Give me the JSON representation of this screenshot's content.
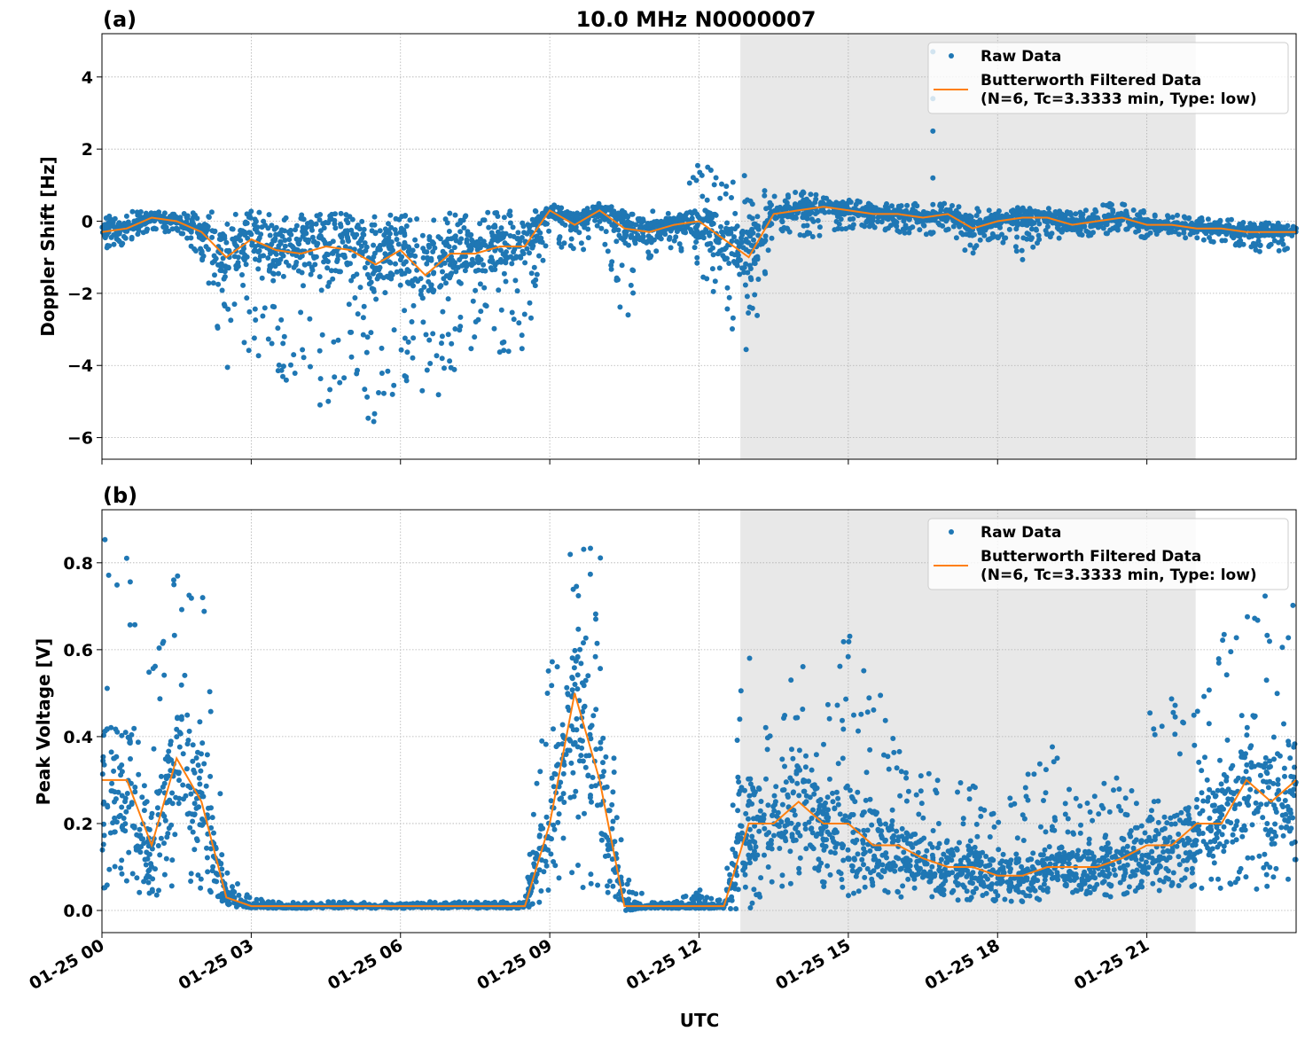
{
  "figure": {
    "title": "10.0 MHz N0000007",
    "xlabel": "UTC",
    "x_tick_labels": [
      "01-25 00",
      "01-25 03",
      "01-25 06",
      "01-25 09",
      "01-25 12",
      "01-25 15",
      "01-25 18",
      "01-25 21"
    ],
    "colors": {
      "raw": "#1f77b4",
      "filtered": "#ff7f0e",
      "shade": "#e8e8e8"
    },
    "legend": {
      "raw": "Raw Data",
      "filtered_line1": "Butterworth Filtered Data",
      "filtered_line2": "(N=6, Tc=3.3333 min, Type: low)",
      "placement": "upper right"
    }
  },
  "chart_data": [
    {
      "panel_label": "(a)",
      "type": "scatter+line",
      "ylabel": "Doppler Shift [Hz]",
      "x_unit": "hours UTC on 01-25",
      "xlim": [
        0,
        24
      ],
      "ylim": [
        -6.6,
        5.2
      ],
      "y_ticks": [
        -6,
        -4,
        -2,
        0,
        2,
        4
      ],
      "y_tick_labels": [
        "−6",
        "−4",
        "−2",
        "0",
        "2",
        "4"
      ],
      "grid": true,
      "shaded_span_hours": [
        12.83,
        21.98
      ],
      "x": [
        0,
        0.5,
        1,
        1.5,
        2,
        2.5,
        3,
        3.5,
        4,
        4.5,
        5,
        5.5,
        6,
        6.5,
        7,
        7.5,
        8,
        8.5,
        9,
        9.5,
        10,
        10.5,
        11,
        11.5,
        12,
        12.5,
        13,
        13.5,
        14,
        14.5,
        15,
        15.5,
        16,
        16.5,
        17,
        17.5,
        18,
        18.5,
        19,
        19.5,
        20,
        20.5,
        21,
        21.5,
        22,
        22.5,
        23,
        23.5,
        24
      ],
      "filtered": [
        -0.3,
        -0.2,
        0.1,
        0.0,
        -0.3,
        -1.0,
        -0.5,
        -0.8,
        -0.9,
        -0.7,
        -0.8,
        -1.2,
        -0.8,
        -1.5,
        -0.9,
        -0.9,
        -0.7,
        -0.7,
        0.3,
        -0.1,
        0.3,
        -0.2,
        -0.3,
        -0.1,
        0.0,
        -0.5,
        -1.0,
        0.2,
        0.3,
        0.4,
        0.3,
        0.2,
        0.2,
        0.1,
        0.2,
        -0.2,
        0.0,
        0.1,
        0.1,
        -0.1,
        0.0,
        0.1,
        -0.1,
        -0.1,
        -0.2,
        -0.2,
        -0.3,
        -0.3,
        -0.3
      ],
      "raw_min": [
        -1.1,
        -0.6,
        -0.3,
        -0.3,
        -1.0,
        -4.5,
        -3.5,
        -4.5,
        -5.0,
        -5.2,
        -4.5,
        -6.1,
        -4.5,
        -5.4,
        -4.3,
        -3.5,
        -3.8,
        -3.5,
        -0.3,
        -1.2,
        -0.1,
        -2.9,
        -1.8,
        -0.6,
        -1.4,
        -2.5,
        -4.0,
        -0.2,
        -0.5,
        -0.5,
        -0.2,
        -0.2,
        -0.3,
        -0.4,
        -0.3,
        -1.1,
        -0.5,
        -1.1,
        -0.4,
        -0.7,
        -0.4,
        -0.3,
        -0.5,
        -0.3,
        -0.6,
        -0.6,
        -0.8,
        -0.9,
        -0.8
      ],
      "raw_max": [
        0.1,
        0.3,
        0.3,
        0.2,
        0.3,
        0.3,
        0.3,
        0.2,
        0.2,
        0.2,
        0.3,
        0.2,
        0.2,
        0.2,
        0.3,
        0.2,
        0.3,
        0.3,
        0.5,
        0.3,
        0.5,
        0.3,
        0.3,
        0.2,
        1.7,
        1.2,
        1.3,
        0.7,
        1.0,
        0.7,
        0.6,
        0.5,
        0.5,
        0.5,
        0.5,
        0.4,
        0.3,
        0.4,
        0.4,
        0.3,
        0.5,
        0.5,
        0.3,
        0.2,
        0.1,
        0.1,
        0.0,
        0.0,
        -0.1
      ],
      "outliers": [
        {
          "x": 16.7,
          "y": 4.7
        },
        {
          "x": 16.7,
          "y": 3.4
        },
        {
          "x": 16.7,
          "y": 2.5
        },
        {
          "x": 16.7,
          "y": 1.2
        }
      ]
    },
    {
      "panel_label": "(b)",
      "type": "scatter+line",
      "ylabel": "Peak Voltage [V]",
      "x_unit": "hours UTC on 01-25",
      "xlim": [
        0,
        24
      ],
      "ylim": [
        -0.051,
        0.922
      ],
      "y_ticks": [
        0.0,
        0.2,
        0.4,
        0.6,
        0.8
      ],
      "y_tick_labels": [
        "0.0",
        "0.2",
        "0.4",
        "0.6",
        "0.8"
      ],
      "grid": true,
      "shaded_span_hours": [
        12.83,
        21.98
      ],
      "x": [
        0,
        0.5,
        1,
        1.5,
        2,
        2.5,
        3,
        3.5,
        4,
        4.5,
        5,
        5.5,
        6,
        6.5,
        7,
        7.5,
        8,
        8.5,
        9,
        9.5,
        10,
        10.5,
        11,
        11.5,
        12,
        12.5,
        13,
        13.5,
        14,
        14.5,
        15,
        15.5,
        16,
        16.5,
        17,
        17.5,
        18,
        18.5,
        19,
        19.5,
        20,
        20.5,
        21,
        21.5,
        22,
        22.5,
        23,
        23.5,
        24
      ],
      "filtered": [
        0.3,
        0.3,
        0.15,
        0.35,
        0.25,
        0.03,
        0.01,
        0.01,
        0.01,
        0.01,
        0.01,
        0.01,
        0.01,
        0.01,
        0.01,
        0.01,
        0.01,
        0.01,
        0.2,
        0.5,
        0.3,
        0.01,
        0.01,
        0.01,
        0.01,
        0.01,
        0.2,
        0.2,
        0.25,
        0.2,
        0.2,
        0.15,
        0.15,
        0.12,
        0.1,
        0.1,
        0.08,
        0.08,
        0.1,
        0.1,
        0.1,
        0.12,
        0.15,
        0.15,
        0.2,
        0.2,
        0.3,
        0.25,
        0.3
      ],
      "raw_min": [
        0.03,
        0.05,
        0.03,
        0.05,
        0.05,
        0.01,
        0.005,
        0.005,
        0.005,
        0.005,
        0.005,
        0.005,
        0.005,
        0.005,
        0.005,
        0.005,
        0.005,
        0.005,
        0.02,
        0.05,
        0.05,
        0.0,
        0.005,
        0.005,
        0.005,
        0.005,
        0.0,
        0.05,
        0.05,
        0.04,
        0.03,
        0.03,
        0.03,
        0.03,
        0.02,
        0.02,
        0.02,
        0.02,
        0.02,
        0.03,
        0.03,
        0.03,
        0.04,
        0.05,
        0.05,
        0.05,
        0.05,
        0.03,
        0.05
      ],
      "raw_max": [
        0.86,
        0.83,
        0.6,
        0.85,
        0.79,
        0.1,
        0.03,
        0.02,
        0.02,
        0.02,
        0.02,
        0.02,
        0.02,
        0.02,
        0.02,
        0.02,
        0.02,
        0.02,
        0.6,
        0.87,
        0.86,
        0.1,
        0.02,
        0.02,
        0.05,
        0.02,
        0.75,
        0.35,
        0.65,
        0.45,
        0.67,
        0.62,
        0.4,
        0.35,
        0.3,
        0.3,
        0.25,
        0.3,
        0.41,
        0.3,
        0.3,
        0.35,
        0.45,
        0.5,
        0.5,
        0.65,
        0.75,
        0.72,
        0.76
      ],
      "outliers": []
    }
  ]
}
